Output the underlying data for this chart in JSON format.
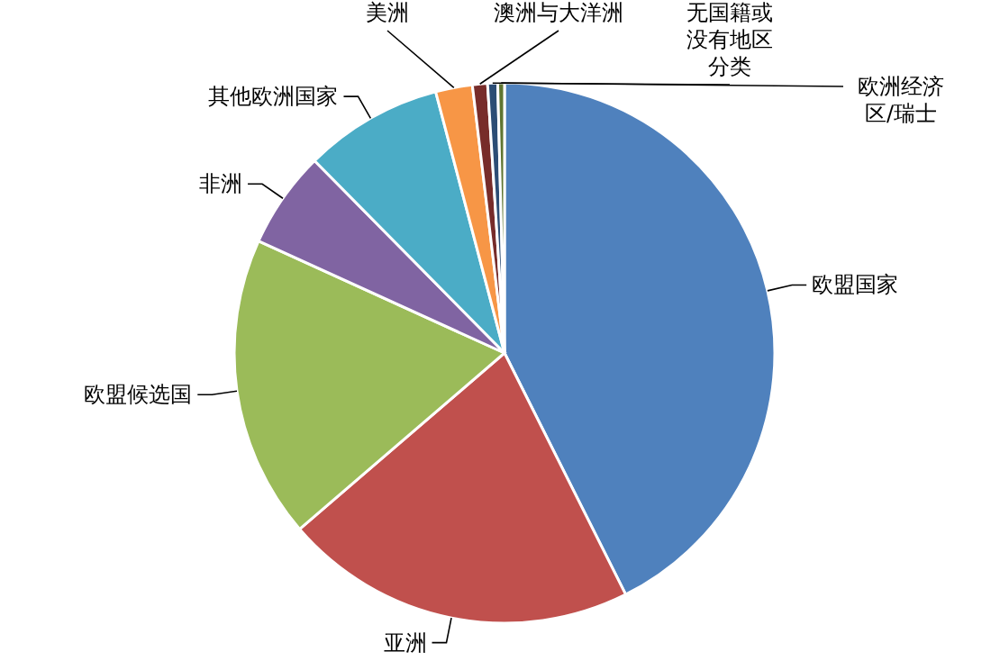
{
  "chart_data": {
    "type": "pie",
    "categories": [
      "欧盟国家",
      "亚洲",
      "欧盟候选国",
      "非洲",
      "其他欧洲国家",
      "美洲",
      "澳洲与大洋洲",
      "无国籍或没有地区分类",
      "欧洲经济区/瑞士"
    ],
    "values": [
      42.6,
      21.1,
      18.1,
      5.8,
      8.3,
      2.2,
      0.9,
      0.6,
      0.4
    ],
    "colors": [
      "#4f81bd",
      "#c0504d",
      "#9bbb59",
      "#8064a2",
      "#4bacc6",
      "#f79646",
      "#772c2a",
      "#2c4d75",
      "#5f7530"
    ]
  }
}
